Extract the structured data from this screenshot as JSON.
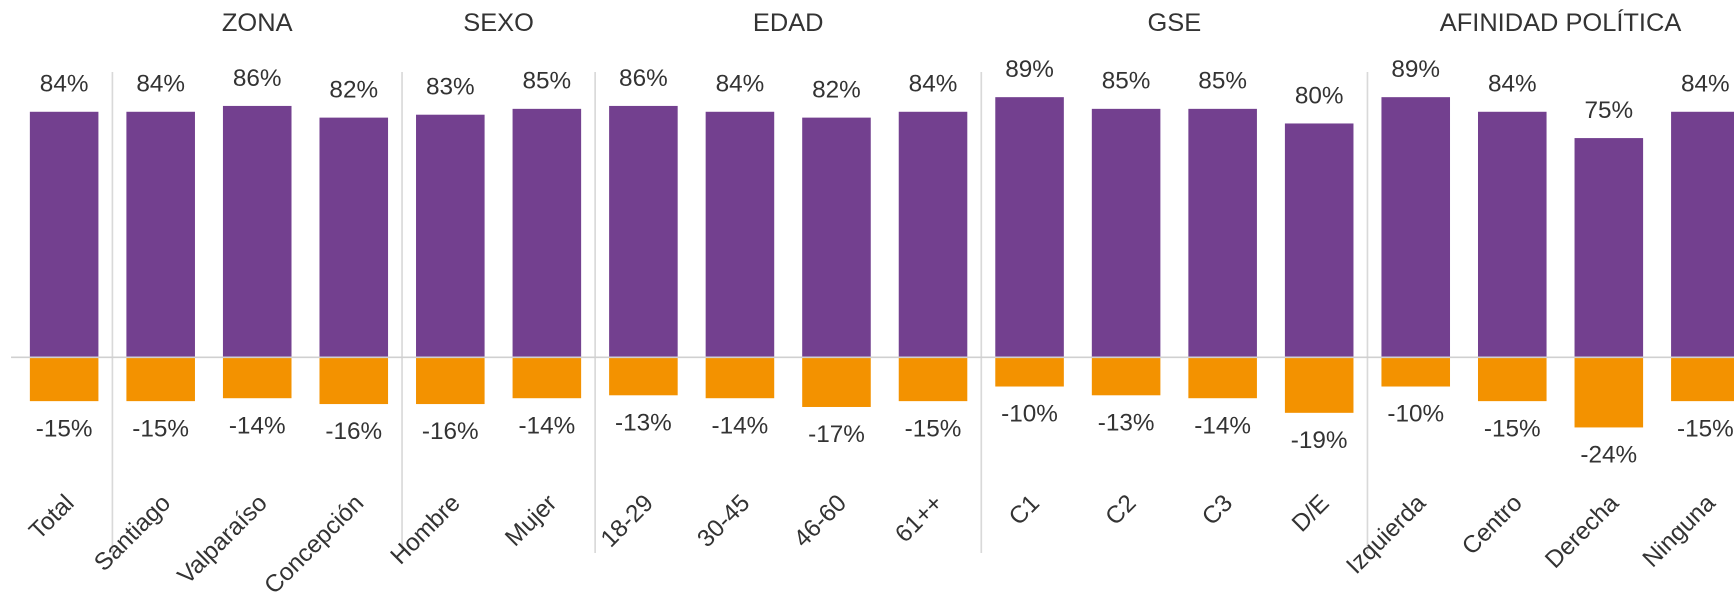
{
  "chart_data": {
    "type": "bar",
    "categories": [
      "Total",
      "Santiago",
      "Valparaíso",
      "Concepción",
      "Hombre",
      "Mujer",
      "18-29",
      "30-45",
      "46-60",
      "61++",
      "C1",
      "C2",
      "C3",
      "D/E",
      "Izquierda",
      "Centro",
      "Derecha",
      "Ninguna"
    ],
    "groups": [
      {
        "label": "ZONA",
        "start": 1,
        "end": 3
      },
      {
        "label": "SEXO",
        "start": 4,
        "end": 5
      },
      {
        "label": "EDAD",
        "start": 6,
        "end": 9
      },
      {
        "label": "GSE",
        "start": 10,
        "end": 13
      },
      {
        "label": "AFINIDAD POLÍTICA",
        "start": 14,
        "end": 17
      }
    ],
    "series": [
      {
        "color": "#73408f",
        "values": [
          84,
          84,
          86,
          82,
          83,
          85,
          86,
          84,
          82,
          84,
          89,
          85,
          85,
          80,
          89,
          84,
          75,
          84
        ],
        "value_labels": [
          "84%",
          "84%",
          "86%",
          "82%",
          "83%",
          "85%",
          "86%",
          "84%",
          "82%",
          "84%",
          "89%",
          "85%",
          "85%",
          "80%",
          "89%",
          "84%",
          "75%",
          "84%"
        ]
      },
      {
        "color": "#f39200",
        "values": [
          -15,
          -15,
          -14,
          -16,
          -16,
          -14,
          -13,
          -14,
          -17,
          -15,
          -10,
          -13,
          -14,
          -19,
          -10,
          -15,
          -24,
          -15
        ],
        "value_labels": [
          "-15%",
          "-15%",
          "-14%",
          "-16%",
          "-16%",
          "-14%",
          "-13%",
          "-14%",
          "-17%",
          "-15%",
          "-10%",
          "-13%",
          "-14%",
          "-19%",
          "-10%",
          "-15%",
          "-24%",
          "-15%"
        ]
      }
    ]
  }
}
